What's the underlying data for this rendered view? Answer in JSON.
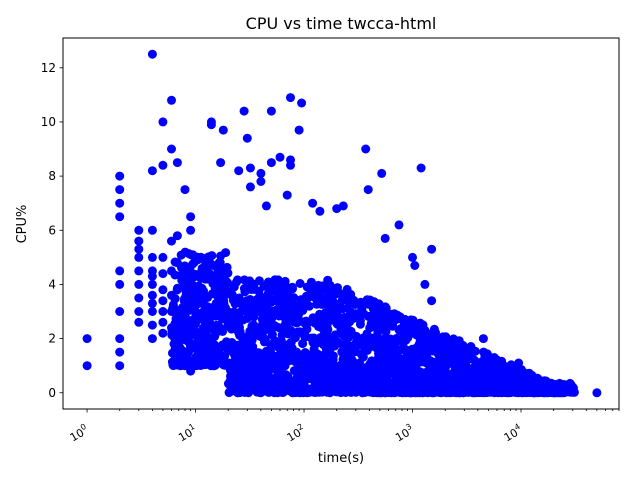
{
  "chart_data": {
    "type": "scatter",
    "title": "CPU vs time twcca-html",
    "xlabel": "time(s)",
    "ylabel": "CPU%",
    "x_scale": "log",
    "xlim": [
      0.6,
      80000
    ],
    "ylim": [
      -0.6,
      13.1
    ],
    "x_ticks": [
      {
        "value": 1,
        "label": "10^0"
      },
      {
        "value": 10,
        "label": "10^1"
      },
      {
        "value": 100,
        "label": "10^2"
      },
      {
        "value": 1000,
        "label": "10^3"
      },
      {
        "value": 10000,
        "label": "10^4"
      }
    ],
    "y_ticks": [
      0,
      2,
      4,
      6,
      8,
      10,
      12
    ],
    "grid": false,
    "legend": "none",
    "marker_color": "#0000ff",
    "series": [
      {
        "points": [
          [
            1,
            1
          ],
          [
            1,
            2
          ],
          [
            2,
            1
          ],
          [
            2,
            1.5
          ],
          [
            2,
            2
          ],
          [
            2,
            3
          ],
          [
            2,
            4
          ],
          [
            2,
            4.5
          ],
          [
            2,
            6.5
          ],
          [
            2,
            7
          ],
          [
            2,
            7.5
          ],
          [
            2,
            8
          ],
          [
            3,
            2.6
          ],
          [
            3,
            3
          ],
          [
            3,
            3.5
          ],
          [
            3,
            4
          ],
          [
            3,
            4.5
          ],
          [
            3,
            5
          ],
          [
            3,
            5.3
          ],
          [
            3,
            5.6
          ],
          [
            3,
            6
          ],
          [
            4,
            2
          ],
          [
            4,
            2.5
          ],
          [
            4,
            3
          ],
          [
            4,
            3.3
          ],
          [
            4,
            3.6
          ],
          [
            4,
            4
          ],
          [
            4,
            4.3
          ],
          [
            4,
            4.5
          ],
          [
            4,
            5
          ],
          [
            4,
            6
          ],
          [
            4,
            8.2
          ],
          [
            4,
            12.5
          ],
          [
            5,
            2.2
          ],
          [
            5,
            2.6
          ],
          [
            5,
            3
          ],
          [
            5,
            3.4
          ],
          [
            5,
            3.8
          ],
          [
            5,
            4.4
          ],
          [
            5,
            5
          ],
          [
            5,
            8.4
          ],
          [
            5,
            10
          ],
          [
            6,
            2.4
          ],
          [
            6,
            3
          ],
          [
            6,
            3.6
          ],
          [
            6,
            4.5
          ],
          [
            6,
            5.6
          ],
          [
            6,
            9
          ],
          [
            6,
            10.8
          ],
          [
            6.8,
            1.4
          ],
          [
            6.8,
            1.7
          ],
          [
            6.8,
            2.6
          ],
          [
            6.8,
            4.8
          ],
          [
            6.8,
            5.8
          ],
          [
            6.8,
            8.5
          ],
          [
            8,
            2.6
          ],
          [
            8,
            3.2
          ],
          [
            8,
            4.6
          ],
          [
            8,
            7.5
          ],
          [
            9,
            0.8
          ],
          [
            9,
            4
          ],
          [
            9,
            6
          ],
          [
            9,
            6.5
          ],
          [
            14,
            9.9
          ],
          [
            14,
            10
          ],
          [
            17,
            8.5
          ],
          [
            18,
            9.7
          ],
          [
            25,
            8.2
          ],
          [
            28,
            10.4
          ],
          [
            30,
            9.4
          ],
          [
            32,
            8.3
          ],
          [
            32,
            7.6
          ],
          [
            40,
            8.1
          ],
          [
            40,
            7.8
          ],
          [
            45,
            6.9
          ],
          [
            50,
            10.4
          ],
          [
            50,
            8.5
          ],
          [
            60,
            8.7
          ],
          [
            75,
            10.9
          ],
          [
            75,
            8.6
          ],
          [
            75,
            8.4
          ],
          [
            90,
            9.7
          ],
          [
            95,
            10.7
          ],
          [
            70,
            7.3
          ],
          [
            120,
            7
          ],
          [
            140,
            6.7
          ],
          [
            200,
            6.8
          ],
          [
            230,
            6.9
          ],
          [
            370,
            9
          ],
          [
            390,
            7.5
          ],
          [
            520,
            8.1
          ],
          [
            560,
            5.7
          ],
          [
            750,
            6.2
          ],
          [
            1000,
            5
          ],
          [
            1050,
            4.7
          ],
          [
            1200,
            8.3
          ],
          [
            1500,
            5.3
          ],
          [
            1500,
            3.4
          ],
          [
            1300,
            4
          ],
          [
            1800,
            1.7
          ],
          [
            2000,
            1.5
          ],
          [
            2300,
            1.4
          ],
          [
            2800,
            1.1
          ],
          [
            4500,
            2
          ],
          [
            5000,
            0.9
          ],
          [
            9500,
            1.1
          ],
          [
            14000,
            0.3
          ],
          [
            24000,
            0.1
          ],
          [
            30000,
            0.05
          ],
          [
            50000,
            0
          ]
        ]
      }
    ]
  }
}
